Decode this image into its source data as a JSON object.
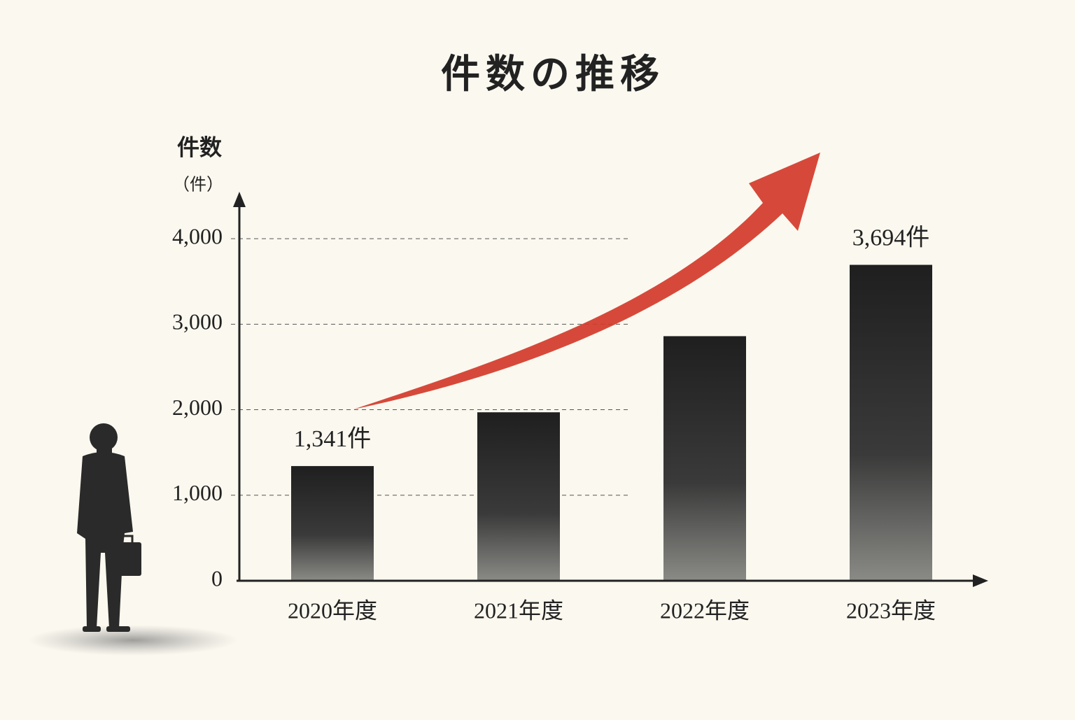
{
  "chart_data": {
    "type": "bar",
    "title": "件数の推移",
    "y_label": "件数",
    "y_unit": "（件）",
    "categories": [
      "2020年度",
      "2021年度",
      "2022年度",
      "2023年度"
    ],
    "values": [
      1341,
      1970,
      2860,
      3694
    ],
    "value_labels": [
      "1,341件",
      null,
      null,
      "3,694件"
    ],
    "ylim": [
      0,
      4500
    ],
    "yticks": [
      0,
      {
        "value": 1000,
        "label": "1,000"
      },
      {
        "value": 2000,
        "label": "2,000"
      },
      {
        "value": 3000,
        "label": "3,000"
      },
      {
        "value": 4000,
        "label": "4,000"
      }
    ],
    "grid": true,
    "color": "#2b2b2b"
  }
}
